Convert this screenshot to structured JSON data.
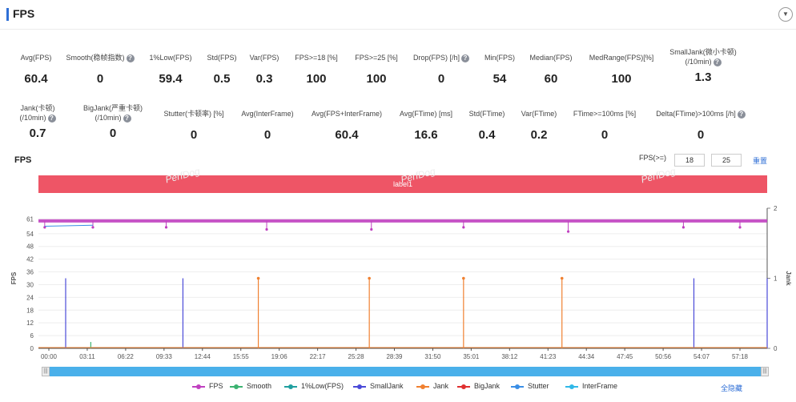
{
  "header": {
    "title": "FPS"
  },
  "metrics_row1": [
    {
      "label": "Avg(FPS)",
      "value": "60.4",
      "help": false
    },
    {
      "label": "Smooth(稳帧指数)",
      "value": "0",
      "help": true
    },
    {
      "label": "1%Low(FPS)",
      "value": "59.4",
      "help": false
    },
    {
      "label": "Std(FPS)",
      "value": "0.5",
      "help": false
    },
    {
      "label": "Var(FPS)",
      "value": "0.3",
      "help": false
    },
    {
      "label": "FPS>=18 [%]",
      "value": "100",
      "help": false
    },
    {
      "label": "FPS>=25 [%]",
      "value": "100",
      "help": false
    },
    {
      "label": "Drop(FPS) [/h]",
      "value": "0",
      "help": true
    },
    {
      "label": "Min(FPS)",
      "value": "54",
      "help": false
    },
    {
      "label": "Median(FPS)",
      "value": "60",
      "help": false
    },
    {
      "label": "MedRange(FPS)[%]",
      "value": "100",
      "help": false
    },
    {
      "label": "SmallJank(微小卡顿)",
      "label2": "(/10min)",
      "value": "1.3",
      "help": true
    }
  ],
  "metrics_row2": [
    {
      "label": "Jank(卡顿)",
      "label2": "(/10min)",
      "value": "0.7",
      "help": true
    },
    {
      "label": "BigJank(严重卡顿)",
      "label2": "(/10min)",
      "value": "0",
      "help": true
    },
    {
      "label": "Stutter(卡顿率) [%]",
      "value": "0",
      "help": false
    },
    {
      "label": "Avg(InterFrame)",
      "value": "0",
      "help": false
    },
    {
      "label": "Avg(FPS+InterFrame)",
      "value": "60.4",
      "help": false
    },
    {
      "label": "Avg(FTime) [ms]",
      "value": "16.6",
      "help": false
    },
    {
      "label": "Std(FTime)",
      "value": "0.4",
      "help": false
    },
    {
      "label": "Var(FTime)",
      "value": "0.2",
      "help": false
    },
    {
      "label": "FTime>=100ms [%]",
      "value": "0",
      "help": false
    },
    {
      "label": "Delta(FTime)>100ms [/h]",
      "value": "0",
      "help": true
    }
  ],
  "chart_section": {
    "title": "FPS",
    "threshold_label": "FPS(>=)",
    "threshold_low": "18",
    "threshold_high": "25",
    "reset_label": "重置",
    "label_bar": "label1",
    "watermark": "PerfDog",
    "hide_all_label": "全隐藏"
  },
  "chart_data": {
    "type": "line",
    "ylabel": "FPS",
    "y2label": "Jank",
    "ylim": [
      0,
      66
    ],
    "y2lim": [
      0,
      2
    ],
    "yticks": [
      0,
      6,
      12,
      18,
      24,
      30,
      36,
      42,
      48,
      54,
      61
    ],
    "y2ticks": [
      0,
      1,
      2
    ],
    "x_tick_labels": [
      "00:00",
      "03:11",
      "06:22",
      "09:33",
      "12:44",
      "15:55",
      "19:06",
      "22:17",
      "25:28",
      "28:39",
      "31:50",
      "35:01",
      "38:12",
      "41:23",
      "44:34",
      "47:45",
      "50:56",
      "54:07",
      "57:18"
    ],
    "series": [
      {
        "name": "FPS",
        "color": "#c040c0",
        "points": [
          [
            0,
            60
          ],
          [
            3,
            57
          ],
          [
            26,
            57
          ],
          [
            61,
            57
          ],
          [
            109,
            56
          ],
          [
            159,
            56
          ],
          [
            203,
            57
          ],
          [
            253,
            55
          ],
          [
            308,
            57
          ],
          [
            335,
            57
          ],
          [
            348,
            60
          ]
        ],
        "level": 60
      },
      {
        "name": "Smooth",
        "color": "#3cb371",
        "spikes": [
          [
            25,
            3
          ]
        ]
      },
      {
        "name": "1%Low(FPS)",
        "color": "#20a0a0",
        "spikes": []
      },
      {
        "name": "SmallJank",
        "color": "#4a4ad8",
        "spikes_y2": [
          [
            13,
            1
          ],
          [
            69,
            1
          ],
          [
            313,
            1
          ],
          [
            348,
            1
          ]
        ]
      },
      {
        "name": "Jank",
        "color": "#f08030",
        "spikes_y2": [
          [
            105,
            1
          ],
          [
            158,
            1
          ],
          [
            203,
            1
          ],
          [
            250,
            1
          ]
        ]
      },
      {
        "name": "BigJank",
        "color": "#e03030",
        "spikes_y2": []
      },
      {
        "name": "Stutter",
        "color": "#3a8ee6",
        "spikes_y2": []
      },
      {
        "name": "InterFrame",
        "color": "#30b8e8",
        "spikes_y2": []
      }
    ],
    "legend": [
      "FPS",
      "Smooth",
      "1%Low(FPS)",
      "SmallJank",
      "Jank",
      "BigJank",
      "Stutter",
      "InterFrame"
    ],
    "legend_colors": [
      "#c040c0",
      "#3cb371",
      "#20a0a0",
      "#4a4ad8",
      "#f08030",
      "#e03030",
      "#3a8ee6",
      "#30b8e8"
    ]
  }
}
